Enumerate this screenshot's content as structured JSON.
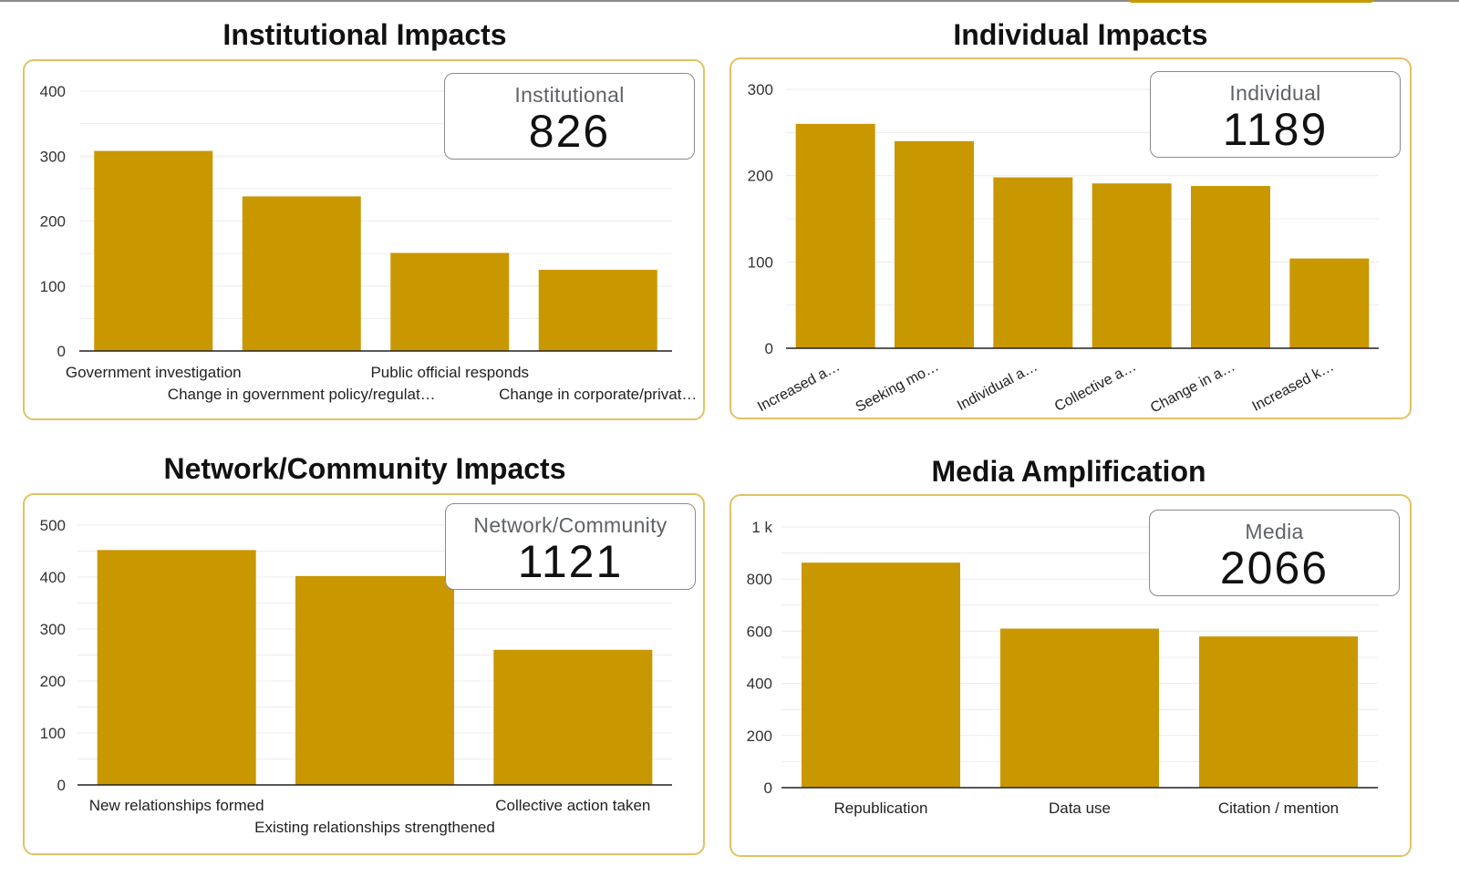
{
  "colors": {
    "bar": "#c99700",
    "card_border": "#e3c262",
    "grid": "#ececec",
    "axis": "#222222"
  },
  "panels": [
    {
      "title": "Institutional Impacts",
      "scorecard": {
        "label": "Institutional",
        "value": "826"
      }
    },
    {
      "title": "Individual Impacts",
      "scorecard": {
        "label": "Individual",
        "value": "1189"
      }
    },
    {
      "title": "Network/Community Impacts",
      "scorecard": {
        "label": "Network/Community",
        "value": "1121"
      }
    },
    {
      "title": "Media Amplification",
      "scorecard": {
        "label": "Media",
        "value": "2066"
      }
    }
  ],
  "chart_data": [
    {
      "type": "bar",
      "title": "Institutional Impacts",
      "categories": [
        "Government investigation",
        "Change in government policy/regulat…",
        "Public official responds",
        "Change in corporate/privat…"
      ],
      "values": [
        308,
        238,
        151,
        125
      ],
      "ylim": [
        0,
        400
      ],
      "yticks": [
        0,
        100,
        200,
        300,
        400
      ],
      "ytick_labels": [
        "0",
        "100",
        "200",
        "300",
        "400"
      ],
      "grid": true
    },
    {
      "type": "bar",
      "title": "Individual Impacts",
      "categories": [
        "Increased a…",
        "Seeking mo…",
        "Individual a…",
        "Collective a…",
        "Change in a…",
        "Increased k…"
      ],
      "values": [
        260,
        240,
        198,
        191,
        188,
        104
      ],
      "ylim": [
        0,
        300
      ],
      "yticks": [
        0,
        100,
        200,
        300
      ],
      "ytick_labels": [
        "0",
        "100",
        "200",
        "300"
      ],
      "grid": true
    },
    {
      "type": "bar",
      "title": "Network/Community Impacts",
      "categories": [
        "New relationships formed",
        "Existing relationships strengthened",
        "Collective action taken"
      ],
      "values": [
        452,
        402,
        260
      ],
      "ylim": [
        0,
        500
      ],
      "yticks": [
        0,
        100,
        200,
        300,
        400,
        500
      ],
      "ytick_labels": [
        "0",
        "100",
        "200",
        "300",
        "400",
        "500"
      ],
      "grid": true
    },
    {
      "type": "bar",
      "title": "Media Amplification",
      "categories": [
        "Republication",
        "Data use",
        "Citation / mention"
      ],
      "values": [
        863,
        610,
        580
      ],
      "ylim": [
        0,
        1000
      ],
      "yticks": [
        0,
        200,
        400,
        600,
        800,
        1000
      ],
      "ytick_labels": [
        "0",
        "200",
        "400",
        "600",
        "800",
        "1 k"
      ],
      "grid": true
    }
  ]
}
